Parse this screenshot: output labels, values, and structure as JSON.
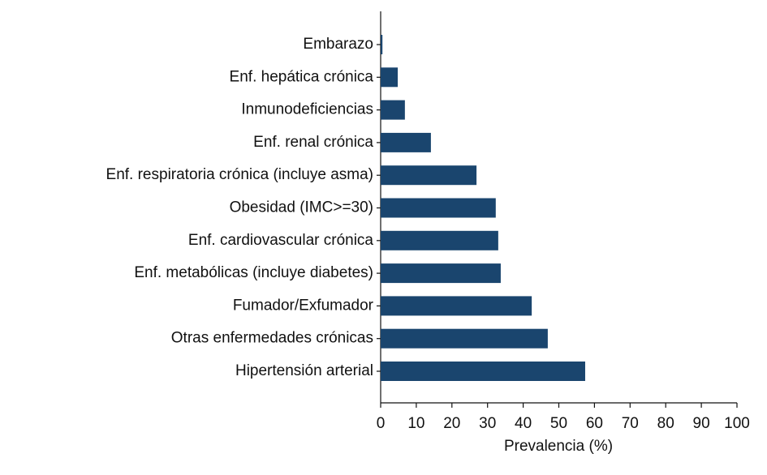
{
  "chart_data": {
    "type": "barh",
    "xlabel": "Prevalencia (%)",
    "categories": [
      "Embarazo",
      "Enf. hepática crónica",
      "Inmunodeficiencias",
      "Enf. renal crónica",
      "Enf. respiratoria crónica (incluye asma)",
      "Obesidad (IMC>=30)",
      "Enf. cardiovascular crónica",
      "Enf. metabólicas (incluye diabetes)",
      "Fumador/Exfumador",
      "Otras enfermedades crónicas",
      "Hipertensión arterial"
    ],
    "values": [
      0.5,
      4.8,
      6.8,
      14.1,
      26.9,
      32.3,
      33.0,
      33.7,
      42.4,
      46.9,
      57.4
    ],
    "color": "#1a456e",
    "xlim": [
      0,
      100
    ],
    "xticks": [
      0,
      10,
      20,
      30,
      40,
      50,
      60,
      70,
      80,
      90,
      100
    ],
    "grid": false
  }
}
